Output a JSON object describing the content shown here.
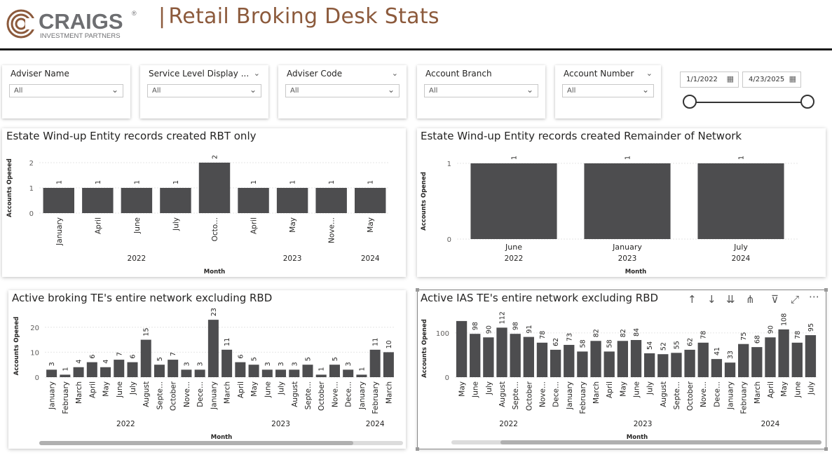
{
  "header": {
    "logo_name": "CRAIGS",
    "logo_sub": "INVESTMENT PARTNERS",
    "logo_reg": "®",
    "title": "Retail Broking Desk Stats",
    "divider": "|"
  },
  "filters": [
    {
      "label": "Adviser Name",
      "value": "All",
      "header_chevron": false
    },
    {
      "label": "Service Level Display ...",
      "value": "All",
      "header_chevron": true
    },
    {
      "label": "Adviser Code",
      "value": "All",
      "header_chevron": true
    },
    {
      "label": "Account Branch",
      "value": "All",
      "header_chevron": false
    },
    {
      "label": "Account Number",
      "value": "All",
      "header_chevron": true
    }
  ],
  "date_range": {
    "start": "1/1/2022",
    "end": "4/23/2025"
  },
  "colors": {
    "bar": "#4d4d4f",
    "title_brown": "#8c5a3c",
    "grid": "#e6e6e6"
  },
  "icons": [
    "calendar-icon",
    "chevron-down-icon",
    "arrow-up-icon",
    "arrow-down-icon",
    "double-arrow-down-icon",
    "expand-hierarchy-icon",
    "filter-icon",
    "focus-mode-icon",
    "more-options-icon"
  ],
  "chart_data": [
    {
      "type": "bar",
      "title": "Estate Wind-up Entity records created RBT only",
      "xlabel": "Month",
      "ylabel": "Accounts Opened",
      "categories": [
        "January",
        "April",
        "June",
        "July",
        "Octo...",
        "April",
        "May",
        "Nove...",
        "May"
      ],
      "values": [
        1,
        1,
        1,
        1,
        2,
        1,
        1,
        1,
        1
      ],
      "years": [
        {
          "label": "2022",
          "from": 0,
          "to": 4
        },
        {
          "label": "2023",
          "from": 5,
          "to": 7
        },
        {
          "label": "2024",
          "from": 8,
          "to": 8
        }
      ],
      "ylim": [
        0,
        2
      ],
      "yticks": [
        0,
        1,
        2
      ],
      "grid": true
    },
    {
      "type": "bar",
      "title": "Estate Wind-up Entity records created Remainder of Network",
      "xlabel": "Month",
      "ylabel": "Accounts Opened",
      "categories": [
        "June",
        "January",
        "July"
      ],
      "values": [
        1,
        1,
        1
      ],
      "years": [
        {
          "label": "2022",
          "from": 0,
          "to": 0
        },
        {
          "label": "2023",
          "from": 1,
          "to": 1
        },
        {
          "label": "2024",
          "from": 2,
          "to": 2
        }
      ],
      "ylim": [
        0,
        1
      ],
      "yticks": [
        0,
        1
      ],
      "grid": true
    },
    {
      "type": "bar",
      "title": "Active broking TE's entire network excluding RBD",
      "xlabel": "Month",
      "ylabel": "Accounts Opened",
      "categories": [
        "January",
        "February",
        "March",
        "April",
        "May",
        "June",
        "July",
        "August",
        "Septe...",
        "October",
        "Nove...",
        "Dece...",
        "January",
        "March",
        "April",
        "May",
        "June",
        "July",
        "August",
        "Septe...",
        "October",
        "Nove...",
        "Dece...",
        "January",
        "February",
        "March"
      ],
      "values": [
        3,
        1,
        4,
        6,
        4,
        7,
        6,
        15,
        5,
        7,
        3,
        3,
        23,
        11,
        6,
        5,
        3,
        3,
        3,
        5,
        1,
        5,
        3,
        1,
        11,
        10
      ],
      "years": [
        {
          "label": "2022",
          "from": 0,
          "to": 11
        },
        {
          "label": "2023",
          "from": 12,
          "to": 22
        },
        {
          "label": "2024",
          "from": 23,
          "to": 25
        }
      ],
      "ylim": [
        0,
        25
      ],
      "yticks": [
        0,
        10,
        20
      ],
      "grid": true
    },
    {
      "type": "bar",
      "title": "Active IAS TE's entire network excluding RBD",
      "xlabel": "Month",
      "ylabel": "Accounts Opened",
      "categories": [
        "May",
        "June",
        "July",
        "August",
        "Septe...",
        "October",
        "Nove...",
        "Dece...",
        "January",
        "February",
        "March",
        "April",
        "May",
        "June",
        "July",
        "August",
        "Septe...",
        "October",
        "Nove...",
        "Dece...",
        "January",
        "February",
        "March",
        "April",
        "May",
        "June",
        "July"
      ],
      "values": [
        127,
        98,
        90,
        112,
        98,
        91,
        78,
        62,
        73,
        58,
        82,
        58,
        82,
        84,
        54,
        52,
        55,
        62,
        78,
        41,
        33,
        75,
        68,
        90,
        108,
        78,
        95
      ],
      "labels": [
        "",
        "98",
        "90",
        "112",
        "98",
        "91",
        "78",
        "62",
        "73",
        "58",
        "82",
        "58",
        "82",
        "84",
        "54",
        "52",
        "55",
        "62",
        "78",
        "41",
        "33",
        "75",
        "68",
        "90",
        "108",
        "78",
        "95"
      ],
      "years": [
        {
          "label": "2022",
          "from": 0,
          "to": 7
        },
        {
          "label": "2023",
          "from": 8,
          "to": 19
        },
        {
          "label": "2024",
          "from": 20,
          "to": 26
        }
      ],
      "ylim": [
        0,
        130
      ],
      "yticks": [
        0,
        100
      ],
      "grid": true
    }
  ]
}
